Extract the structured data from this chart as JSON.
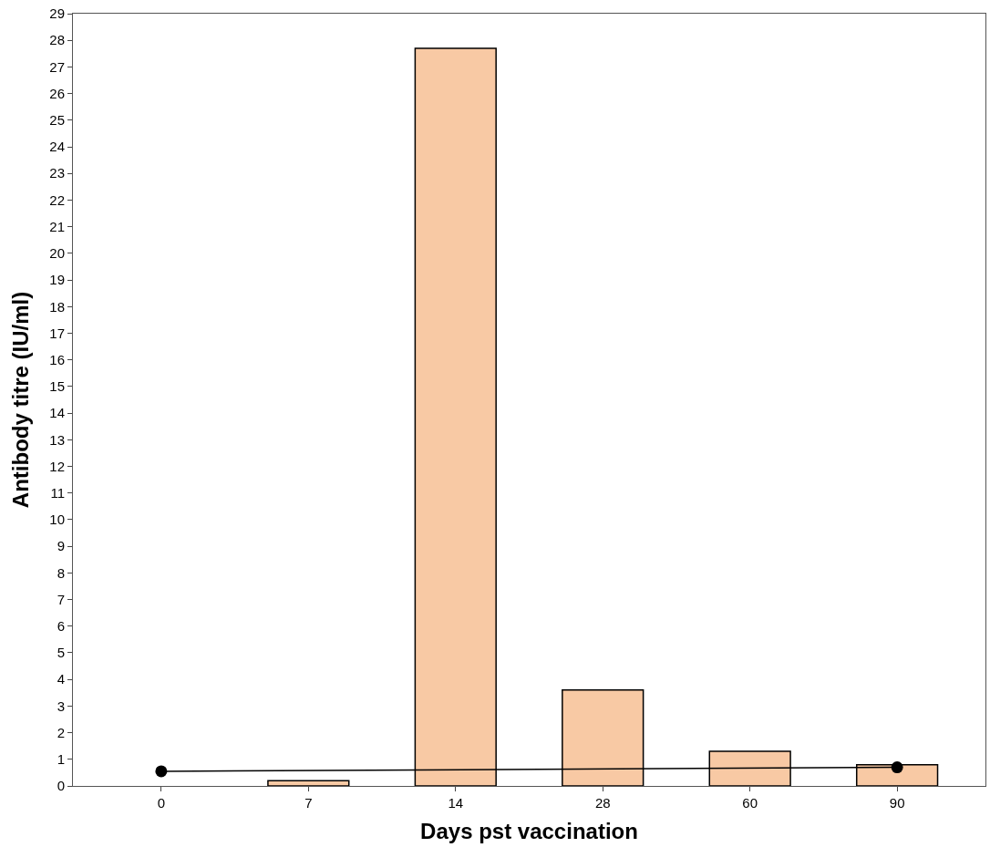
{
  "chart_data": {
    "type": "bar",
    "xlabel": "Days pst vaccination",
    "ylabel": "Antibody titre (IU/ml)",
    "categories": [
      "0",
      "7",
      "14",
      "28",
      "60",
      "90"
    ],
    "series": [
      {
        "color": "#f8c9a4",
        "values": [
          0,
          0.2,
          27.7,
          3.6,
          1.3,
          0.8
        ]
      },
      {
        "type": "line",
        "color": "#000000",
        "marker": "circle",
        "values": [
          0.55,
          null,
          null,
          null,
          null,
          0.7
        ]
      }
    ],
    "ylim": [
      0,
      29
    ],
    "yticks": [
      0,
      1,
      2,
      3,
      4,
      5,
      6,
      7,
      8,
      9,
      10,
      11,
      12,
      13,
      14,
      15,
      16,
      17,
      18,
      19,
      20,
      21,
      22,
      23,
      24,
      25,
      26,
      27,
      28,
      29
    ]
  }
}
